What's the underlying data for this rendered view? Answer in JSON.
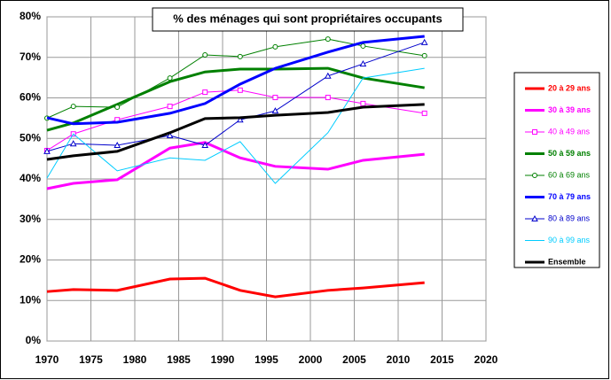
{
  "chart_data": {
    "type": "line",
    "title": "% des ménages qui sont propriétaires occupants",
    "x": [
      1970,
      1973,
      1978,
      1984,
      1988,
      1992,
      1996,
      2002,
      2006,
      2013
    ],
    "xlim": [
      1970,
      2020
    ],
    "xticks": [
      1970,
      1975,
      1980,
      1985,
      1990,
      1995,
      2000,
      2005,
      2010,
      2015,
      2020
    ],
    "ylim": [
      0,
      80
    ],
    "yticks": [
      {
        "value": 0,
        "label": "0%"
      },
      {
        "value": 10,
        "label": "10%"
      },
      {
        "value": 20,
        "label": "20%"
      },
      {
        "value": 30,
        "label": "30%"
      },
      {
        "value": 40,
        "label": "40%"
      },
      {
        "value": 50,
        "label": "50%"
      },
      {
        "value": 60,
        "label": "60%"
      },
      {
        "value": 70,
        "label": "70%"
      },
      {
        "value": 80,
        "label": "80%"
      }
    ],
    "grid": true,
    "legend": "right",
    "series": [
      {
        "name": "20 à 29 ans",
        "color": "#ff0000",
        "marker": null,
        "values": [
          12.2,
          12.7,
          12.5,
          15.3,
          15.5,
          12.5,
          10.9,
          12.5,
          13.1,
          14.4
        ]
      },
      {
        "name": "30 à 39 ans",
        "color": "#ff00ff",
        "marker": null,
        "values": [
          37.6,
          38.9,
          39.8,
          47.6,
          49,
          45.2,
          43.1,
          42.4,
          44.6,
          46.1
        ]
      },
      {
        "name": "40 à 49 ans",
        "color": "#ff00ff",
        "marker": "square",
        "values": [
          47,
          51.1,
          54.6,
          57.9,
          61.4,
          61.9,
          60.1,
          60.1,
          58.6,
          56.2
        ]
      },
      {
        "name": "50 à 59 ans",
        "color": "#008000",
        "marker": null,
        "values": [
          52,
          53.8,
          58.4,
          64,
          66.4,
          67.1,
          67.1,
          67.3,
          64.9,
          62.5
        ]
      },
      {
        "name": "60 à 69 ans",
        "color": "#008000",
        "marker": "circle",
        "values": [
          55,
          57.9,
          57.7,
          64.9,
          70.6,
          70.2,
          72.6,
          74.5,
          72.8,
          70.4
        ]
      },
      {
        "name": "70 à 79 ans",
        "color": "#0000ff",
        "marker": null,
        "values": [
          55.1,
          53.6,
          54,
          56.2,
          58.6,
          63.4,
          67.3,
          71.3,
          73.7,
          75.2
        ]
      },
      {
        "name": "80 à 89 ans",
        "color": "#0000cc",
        "marker": "triangle",
        "values": [
          46.8,
          48.7,
          48.3,
          50.7,
          48.3,
          54.6,
          56.8,
          65.4,
          68.4,
          73.7
        ]
      },
      {
        "name": "90 à 99 ans",
        "color": "#00ccff",
        "marker": null,
        "values": [
          40.2,
          51.1,
          42,
          45.2,
          44.6,
          49.2,
          38.9,
          51.4,
          64.9,
          67.3
        ]
      },
      {
        "name": "Ensemble",
        "color": "#000000",
        "marker": null,
        "values": [
          44.8,
          45.7,
          46.8,
          51.4,
          54.9,
          55.1,
          55.7,
          56.4,
          57.7,
          58.4
        ]
      }
    ]
  }
}
